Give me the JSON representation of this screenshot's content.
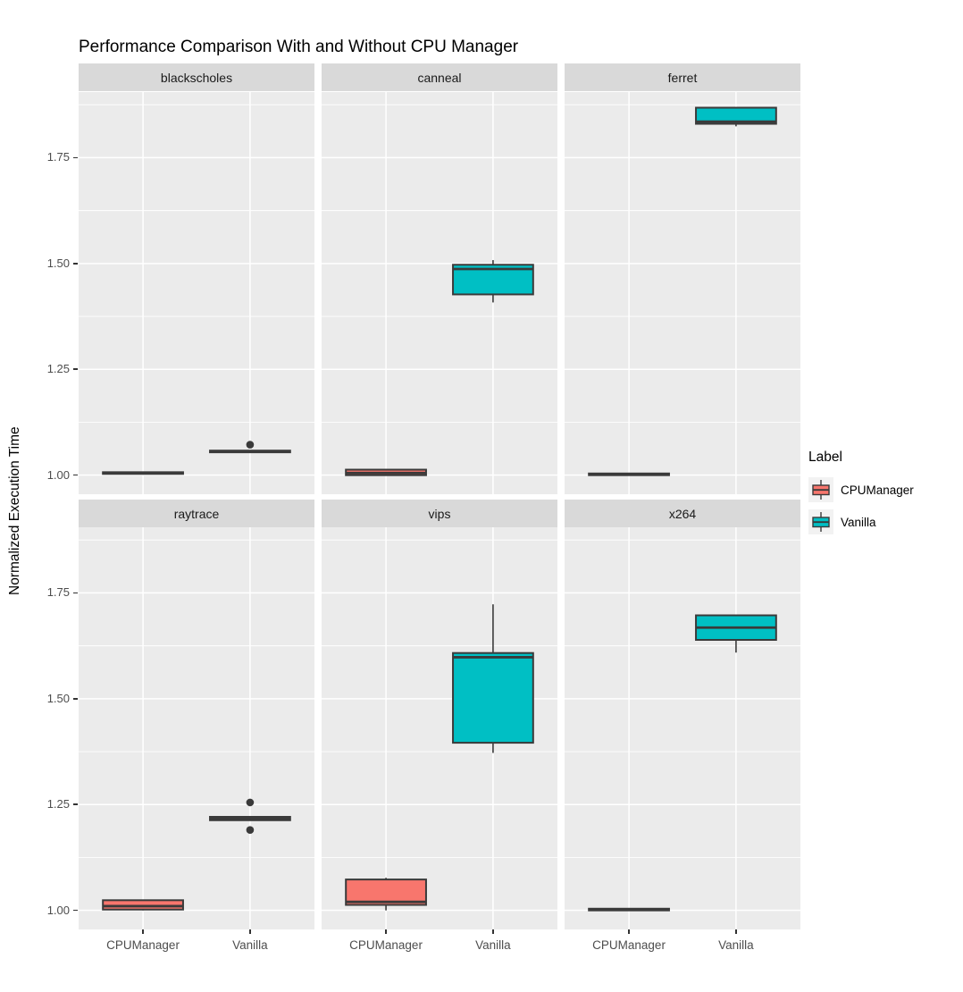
{
  "title": "Performance Comparison With and Without CPU Manager",
  "y_axis": {
    "label": "Normalized Execution Time",
    "tick_labels_top_to_bottom": [
      "1.75",
      "1.50",
      "1.25",
      "1.00"
    ]
  },
  "x_axis": {
    "categories": [
      "CPUManager",
      "Vanilla"
    ]
  },
  "legend": {
    "title": "Label",
    "items": [
      {
        "label": "CPUManager",
        "color": "#F8766D"
      },
      {
        "label": "Vanilla",
        "color": "#00BFC4"
      }
    ]
  },
  "colors": {
    "panel_bg": "#EBEBEB",
    "strip_bg": "#D9D9D9",
    "grid": "#FFFFFF",
    "box_stroke": "#3A3A3A",
    "axis_text": "#4D4D4D",
    "legend_key_bg": "#F2F2F2"
  },
  "chart_data": {
    "type": "boxplot",
    "title": "Performance Comparison With and Without CPU Manager",
    "ylabel": "Normalized Execution Time",
    "xlabel": "",
    "ylim": [
      0.955,
      1.905
    ],
    "yticks": [
      1.0,
      1.25,
      1.5,
      1.75
    ],
    "ytick_labels": [
      "1.00",
      "1.25",
      "1.50",
      "1.75"
    ],
    "yticks_minor": [
      1.125,
      1.375,
      1.625,
      1.875
    ],
    "categories": [
      "CPUManager",
      "Vanilla"
    ],
    "grid": true,
    "legend_position": "right",
    "facet_layout": {
      "rows": 2,
      "cols": 3
    },
    "facets": [
      {
        "name": "blackscholes",
        "boxes": [
          {
            "group": "CPUManager",
            "whisker_low": 1.003,
            "q1": 1.003,
            "median": 1.005,
            "q3": 1.007,
            "whisker_high": 1.007,
            "outliers": []
          },
          {
            "group": "Vanilla",
            "whisker_low": 1.054,
            "q1": 1.054,
            "median": 1.056,
            "q3": 1.058,
            "whisker_high": 1.058,
            "outliers": [
              1.072
            ]
          }
        ]
      },
      {
        "name": "canneal",
        "boxes": [
          {
            "group": "CPUManager",
            "whisker_low": 1.0,
            "q1": 1.0,
            "median": 1.005,
            "q3": 1.013,
            "whisker_high": 1.013,
            "outliers": []
          },
          {
            "group": "Vanilla",
            "whisker_low": 1.408,
            "q1": 1.427,
            "median": 1.487,
            "q3": 1.497,
            "whisker_high": 1.508,
            "outliers": []
          }
        ]
      },
      {
        "name": "ferret",
        "boxes": [
          {
            "group": "CPUManager",
            "whisker_low": 1.0,
            "q1": 1.0,
            "median": 1.002,
            "q3": 1.004,
            "whisker_high": 1.004,
            "outliers": []
          },
          {
            "group": "Vanilla",
            "whisker_low": 1.824,
            "q1": 1.83,
            "median": 1.835,
            "q3": 1.868,
            "whisker_high": 1.868,
            "outliers": []
          }
        ]
      },
      {
        "name": "raytrace",
        "boxes": [
          {
            "group": "CPUManager",
            "whisker_low": 1.0,
            "q1": 1.002,
            "median": 1.01,
            "q3": 1.024,
            "whisker_high": 1.024,
            "outliers": []
          },
          {
            "group": "Vanilla",
            "whisker_low": 1.213,
            "q1": 1.213,
            "median": 1.217,
            "q3": 1.221,
            "whisker_high": 1.221,
            "outliers": [
              1.255,
              1.19
            ]
          }
        ]
      },
      {
        "name": "vips",
        "boxes": [
          {
            "group": "CPUManager",
            "whisker_low": 1.0,
            "q1": 1.013,
            "median": 1.02,
            "q3": 1.073,
            "whisker_high": 1.077,
            "outliers": []
          },
          {
            "group": "Vanilla",
            "whisker_low": 1.372,
            "q1": 1.396,
            "median": 1.598,
            "q3": 1.608,
            "whisker_high": 1.723,
            "outliers": []
          }
        ]
      },
      {
        "name": "x264",
        "boxes": [
          {
            "group": "CPUManager",
            "whisker_low": 1.0,
            "q1": 1.0,
            "median": 1.002,
            "q3": 1.004,
            "whisker_high": 1.004,
            "outliers": []
          },
          {
            "group": "Vanilla",
            "whisker_low": 1.609,
            "q1": 1.639,
            "median": 1.668,
            "q3": 1.697,
            "whisker_high": 1.697,
            "outliers": []
          }
        ]
      }
    ]
  }
}
